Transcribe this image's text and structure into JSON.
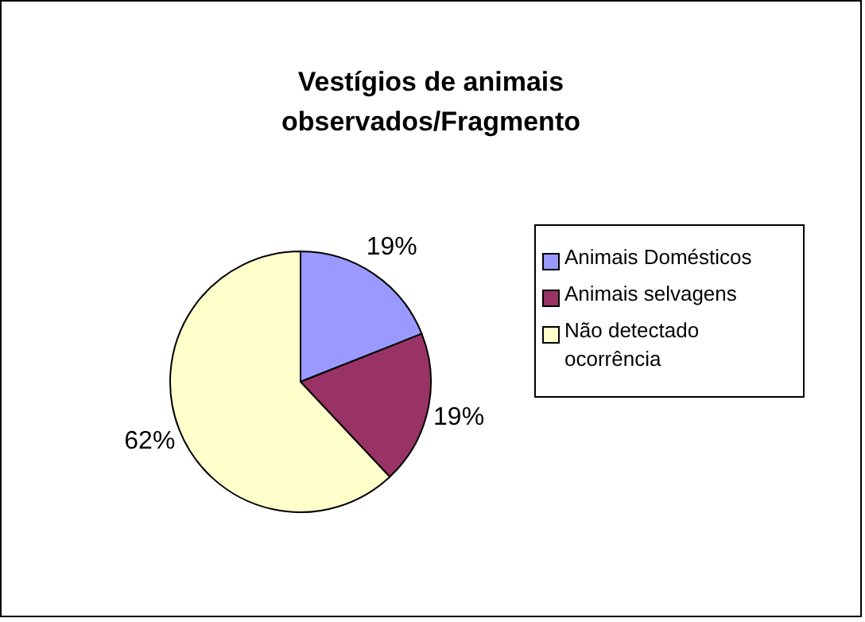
{
  "chart_data": {
    "type": "pie",
    "title": "Vestígios de animais observados/Fragmento",
    "categories": [
      "Animais Domésticos",
      "Animais selvagens",
      "Não detectado ocorrência"
    ],
    "values": [
      19,
      19,
      62
    ],
    "colors": [
      "#9999ff",
      "#993366",
      "#ffffcc"
    ],
    "value_labels": [
      "19%",
      "19%",
      "62%"
    ],
    "legend": "right"
  }
}
